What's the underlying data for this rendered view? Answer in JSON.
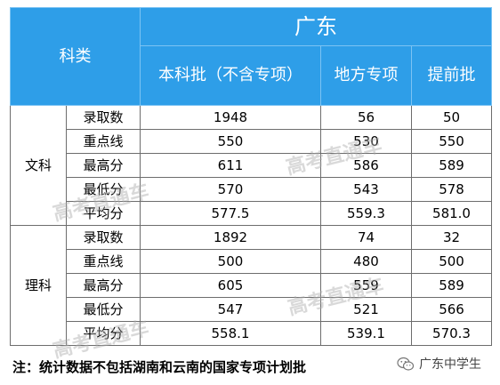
{
  "table": {
    "category_header": "科类",
    "province": "广东",
    "columns": [
      "本科批（不含专项）",
      "地方专项",
      "提前批"
    ],
    "groups": [
      {
        "name": "文科",
        "rows": [
          {
            "label": "录取数",
            "values": [
              "1948",
              "56",
              "50"
            ]
          },
          {
            "label": "重点线",
            "values": [
              "550",
              "530",
              "550"
            ]
          },
          {
            "label": "最高分",
            "values": [
              "611",
              "586",
              "589"
            ]
          },
          {
            "label": "最低分",
            "values": [
              "570",
              "543",
              "578"
            ]
          },
          {
            "label": "平均分",
            "values": [
              "577.5",
              "559.3",
              "581.0"
            ]
          }
        ]
      },
      {
        "name": "理科",
        "rows": [
          {
            "label": "录取数",
            "values": [
              "1892",
              "74",
              "32"
            ]
          },
          {
            "label": "重点线",
            "values": [
              "500",
              "480",
              "500"
            ]
          },
          {
            "label": "最高分",
            "values": [
              "605",
              "559",
              "589"
            ]
          },
          {
            "label": "最低分",
            "values": [
              "547",
              "521",
              "566"
            ]
          },
          {
            "label": "平均分",
            "values": [
              "558.1",
              "539.1",
              "570.3"
            ]
          }
        ]
      }
    ]
  },
  "note": "注：统计数据不包括湖南和云南的国家专项计划批",
  "brand": {
    "icon": "wechat-icon",
    "name": "广东中学生"
  },
  "watermark": "高考直通车",
  "colors": {
    "header_bg": "#2e9ee8",
    "header_text": "#ffffff",
    "border": "#6d6d6d"
  }
}
